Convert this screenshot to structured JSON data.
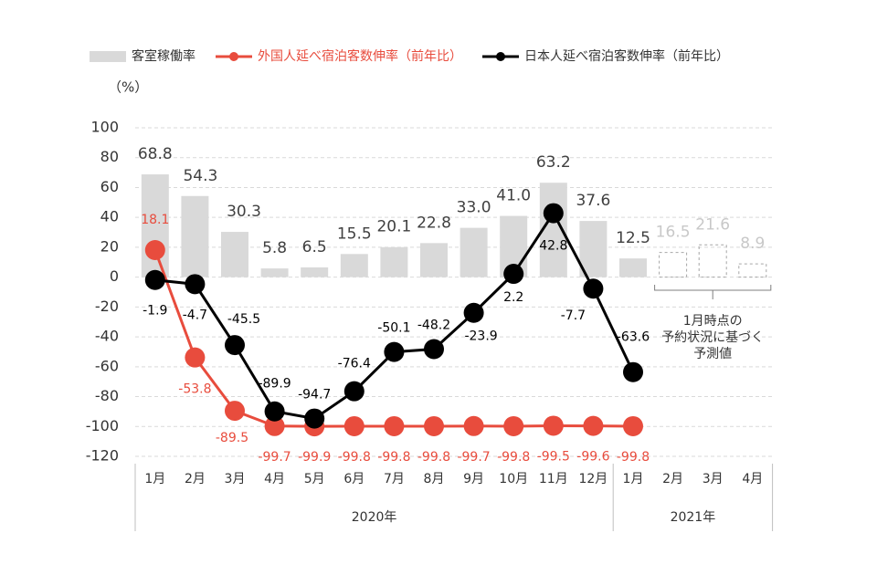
{
  "chart_data": {
    "type": "bar-line",
    "unit_label": "（%）",
    "categories": [
      "1月",
      "2月",
      "3月",
      "4月",
      "5月",
      "6月",
      "7月",
      "8月",
      "9月",
      "10月",
      "11月",
      "12月",
      "1月",
      "2月",
      "3月",
      "4月"
    ],
    "groups": [
      {
        "label": "2020年",
        "span": 12
      },
      {
        "label": "2021年",
        "span": 4
      }
    ],
    "ylim": [
      -120,
      100
    ],
    "yticks": [
      -120,
      -100,
      -80,
      -60,
      -40,
      -20,
      0,
      20,
      40,
      60,
      80,
      100
    ],
    "grid": true,
    "series": [
      {
        "name": "客室稼働率",
        "kind": "bar",
        "color": "#d9d9d9",
        "values": [
          68.8,
          54.3,
          30.3,
          5.8,
          6.5,
          15.5,
          20.1,
          22.8,
          33.0,
          41.0,
          63.2,
          37.6,
          12.5,
          16.5,
          21.6,
          8.9
        ],
        "value_labels": [
          "68.8",
          "54.3",
          "30.3",
          "5.8",
          "6.5",
          "15.5",
          "20.1",
          "22.8",
          "33.0",
          "41.0",
          "63.2",
          "37.6",
          "12.5",
          "16.5",
          "21.6",
          "8.9"
        ],
        "line_style": [
          "solid",
          "solid",
          "solid",
          "solid",
          "solid",
          "solid",
          "solid",
          "solid",
          "solid",
          "solid",
          "solid",
          "solid",
          "solid",
          "dashed",
          "dashed",
          "dashed"
        ]
      },
      {
        "name": "外国人延べ宿泊客数伸率（前年比）",
        "kind": "line",
        "color": "#e84c3d",
        "values": [
          18.1,
          -53.8,
          -89.5,
          -99.7,
          -99.9,
          -99.8,
          -99.8,
          -99.8,
          -99.7,
          -99.8,
          -99.5,
          -99.6,
          -99.8,
          null,
          null,
          null
        ]
      },
      {
        "name": "日本人延べ宿泊客数伸率（前年比）",
        "kind": "line",
        "color": "#000000",
        "values": [
          -1.9,
          -4.7,
          -45.5,
          -89.9,
          -94.7,
          -76.4,
          -50.1,
          -48.2,
          -23.9,
          2.2,
          42.8,
          -7.7,
          -63.6,
          null,
          null,
          null
        ]
      }
    ],
    "annotation": [
      "1月時点の",
      "予約状況に基づく",
      "予測値"
    ]
  }
}
